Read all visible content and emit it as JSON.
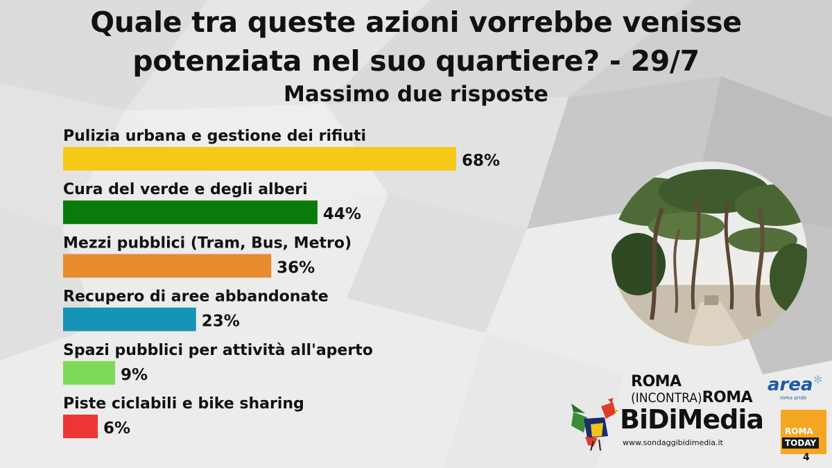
{
  "title_line1": "Quale tra queste azioni vorrebbe venisse",
  "title_line2": "potenziata nel suo quartiere? - 29/7",
  "subtitle": "Massimo due risposte",
  "chart_data": {
    "type": "bar",
    "orientation": "horizontal",
    "categories": [
      "Pulizia urbana e gestione dei rifiuti",
      "Cura del verde e degli alberi",
      "Mezzi pubblici (Tram, Bus, Metro)",
      "Recupero di aree abbandonate",
      "Spazi pubblici per attività all'aperto",
      "Piste ciclabili e bike sharing"
    ],
    "values": [
      68,
      44,
      36,
      23,
      9,
      6
    ],
    "value_labels": [
      "68%",
      "44%",
      "36%",
      "23%",
      "9%",
      "6%"
    ],
    "colors": [
      "#f5c918",
      "#0a7a0a",
      "#e88b2e",
      "#1594b5",
      "#7ed957",
      "#ee3535"
    ],
    "unit": "%",
    "grid": false,
    "legend": "none"
  },
  "logos": {
    "roma_line1": "ROMA",
    "roma_incontra": "(INCONTRA)",
    "roma_line2": "ROMA",
    "area_name": "area",
    "area_sub": "roma pride",
    "bidimedia_name": "BiDiMedia",
    "bidimedia_url": "www.sondaggibidimedia.it",
    "romatoday_line1": "ROMA",
    "romatoday_line2": "TODAY"
  },
  "page_number": "4"
}
